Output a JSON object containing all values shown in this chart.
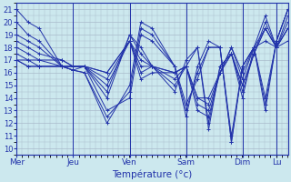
{
  "xlabel": "Température (°c)",
  "background_color": "#cce8ee",
  "plot_bg_color": "#cce8ee",
  "line_color": "#2233aa",
  "grid_color": "#aabbcc",
  "ylim": [
    9.5,
    21.5
  ],
  "yticks": [
    10,
    11,
    12,
    13,
    14,
    15,
    16,
    17,
    18,
    19,
    20,
    21
  ],
  "day_labels": [
    "Mer",
    "Jeu",
    "Ven",
    "Sam",
    "Dim",
    "Lu"
  ],
  "day_x": [
    0.0,
    0.208,
    0.417,
    0.625,
    0.833,
    0.958
  ],
  "xlim": [
    0.0,
    1.0
  ],
  "series": [
    {
      "x": [
        0.0,
        0.042,
        0.083,
        0.167,
        0.208,
        0.25,
        0.333,
        0.417,
        0.458,
        0.5,
        0.583,
        0.625,
        0.667,
        0.708,
        0.75,
        0.792,
        0.833,
        0.875,
        0.917,
        0.958,
        1.0
      ],
      "y": [
        21.0,
        20.0,
        19.5,
        16.5,
        16.2,
        16.0,
        12.0,
        15.0,
        20.0,
        19.5,
        16.5,
        12.5,
        16.5,
        18.5,
        18.0,
        10.5,
        16.5,
        18.0,
        14.0,
        18.5,
        21.0
      ]
    },
    {
      "x": [
        0.0,
        0.042,
        0.083,
        0.167,
        0.208,
        0.25,
        0.333,
        0.417,
        0.458,
        0.5,
        0.583,
        0.625,
        0.667,
        0.708,
        0.75,
        0.792,
        0.833,
        0.875,
        0.917,
        0.958,
        1.0
      ],
      "y": [
        20.0,
        19.0,
        18.5,
        16.5,
        16.2,
        16.0,
        12.5,
        14.5,
        19.5,
        19.0,
        16.5,
        13.0,
        16.0,
        18.0,
        18.0,
        10.5,
        16.5,
        18.0,
        13.0,
        18.5,
        21.0
      ]
    },
    {
      "x": [
        0.0,
        0.042,
        0.083,
        0.167,
        0.208,
        0.25,
        0.333,
        0.417,
        0.458,
        0.5,
        0.583,
        0.625,
        0.667,
        0.708,
        0.75,
        0.792,
        0.833,
        0.875,
        0.917,
        0.958,
        1.0
      ],
      "y": [
        19.0,
        18.5,
        18.0,
        16.5,
        16.2,
        16.5,
        13.0,
        14.0,
        19.0,
        18.5,
        16.5,
        13.5,
        15.5,
        18.0,
        18.0,
        11.0,
        16.5,
        18.0,
        13.5,
        18.5,
        21.0
      ]
    },
    {
      "x": [
        0.0,
        0.042,
        0.083,
        0.167,
        0.208,
        0.25,
        0.333,
        0.417,
        0.458,
        0.5,
        0.583,
        0.625,
        0.667,
        0.708,
        0.75,
        0.792,
        0.833,
        0.875,
        0.917,
        0.958,
        1.0
      ],
      "y": [
        18.5,
        18.0,
        17.5,
        17.0,
        16.5,
        16.5,
        14.0,
        19.0,
        18.0,
        16.5,
        14.5,
        17.0,
        18.0,
        11.5,
        16.5,
        17.5,
        14.0,
        18.0,
        20.5,
        18.0,
        20.5
      ]
    },
    {
      "x": [
        0.0,
        0.042,
        0.083,
        0.167,
        0.208,
        0.25,
        0.333,
        0.417,
        0.458,
        0.5,
        0.583,
        0.625,
        0.667,
        0.708,
        0.75,
        0.792,
        0.833,
        0.875,
        0.917,
        0.958,
        1.0
      ],
      "y": [
        18.0,
        17.5,
        17.0,
        17.0,
        16.5,
        16.5,
        14.5,
        19.0,
        17.5,
        16.5,
        15.0,
        16.5,
        18.0,
        12.0,
        16.5,
        17.5,
        14.5,
        17.5,
        20.0,
        18.0,
        20.0
      ]
    },
    {
      "x": [
        0.0,
        0.042,
        0.083,
        0.167,
        0.208,
        0.25,
        0.333,
        0.417,
        0.458,
        0.5,
        0.583,
        0.625,
        0.667,
        0.708,
        0.75,
        0.792,
        0.833,
        0.875,
        0.917,
        0.958,
        1.0
      ],
      "y": [
        17.5,
        17.0,
        17.0,
        16.5,
        16.5,
        16.5,
        15.0,
        18.5,
        17.0,
        16.5,
        15.5,
        16.5,
        13.0,
        12.5,
        16.0,
        17.5,
        15.0,
        17.5,
        19.5,
        18.0,
        19.5
      ]
    },
    {
      "x": [
        0.0,
        0.042,
        0.083,
        0.167,
        0.208,
        0.25,
        0.333,
        0.417,
        0.458,
        0.5,
        0.583,
        0.625,
        0.667,
        0.708,
        0.75,
        0.792,
        0.833,
        0.875,
        0.917,
        0.958,
        1.0
      ],
      "y": [
        17.0,
        17.0,
        16.5,
        16.5,
        16.5,
        16.5,
        15.5,
        18.5,
        16.5,
        16.5,
        16.0,
        16.5,
        13.5,
        13.0,
        16.0,
        17.5,
        15.0,
        17.5,
        19.5,
        18.0,
        19.5
      ]
    },
    {
      "x": [
        0.0,
        0.042,
        0.083,
        0.167,
        0.208,
        0.25,
        0.333,
        0.417,
        0.458,
        0.5,
        0.583,
        0.625,
        0.667,
        0.708,
        0.75,
        0.792,
        0.833,
        0.875,
        0.917,
        0.958,
        1.0
      ],
      "y": [
        17.0,
        16.5,
        16.5,
        16.5,
        16.5,
        16.5,
        16.0,
        18.5,
        16.0,
        16.5,
        16.0,
        16.5,
        14.0,
        13.5,
        16.0,
        18.0,
        15.5,
        18.0,
        19.5,
        18.0,
        19.5
      ]
    },
    {
      "x": [
        0.0,
        0.042,
        0.083,
        0.167,
        0.208,
        0.25,
        0.333,
        0.417,
        0.458,
        0.5,
        0.583,
        0.625,
        0.667,
        0.708,
        0.75,
        0.792,
        0.833,
        0.875,
        0.917,
        0.958,
        1.0
      ],
      "y": [
        17.0,
        16.5,
        16.5,
        16.5,
        16.5,
        16.5,
        16.0,
        18.5,
        15.5,
        16.0,
        16.0,
        16.5,
        14.0,
        14.0,
        16.0,
        18.0,
        16.0,
        18.0,
        18.5,
        18.0,
        18.5
      ]
    }
  ]
}
